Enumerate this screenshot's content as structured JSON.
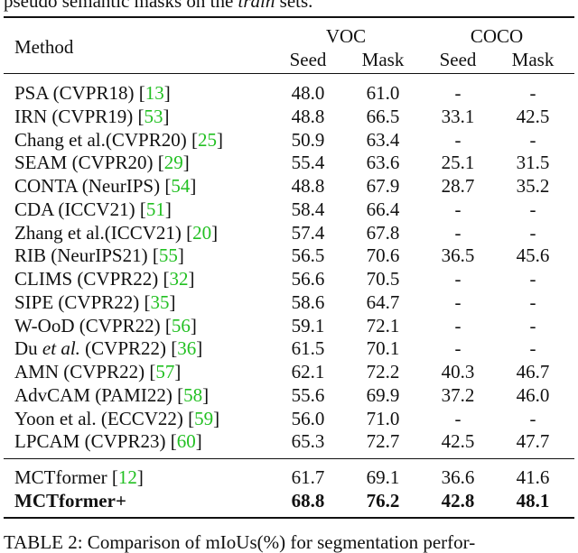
{
  "top_text": [
    "pseudo semantic masks on the ",
    "train",
    " sets."
  ],
  "table": {
    "header": {
      "method": "Method",
      "groups": [
        "VOC",
        "COCO"
      ],
      "columns": [
        "Seed",
        "Mask",
        "Seed",
        "Mask"
      ]
    },
    "rows": [
      {
        "method": "PSA (CVPR18)",
        "cite": "[13]",
        "values": [
          "48.0",
          "61.0",
          "-",
          "-"
        ]
      },
      {
        "method": "IRN (CVPR19)",
        "cite": "[53]",
        "values": [
          "48.8",
          "66.5",
          "33.1",
          "42.5"
        ]
      },
      {
        "method": "Chang et al.(CVPR20)",
        "cite": "[25]",
        "values": [
          "50.9",
          "63.4",
          "-",
          "-"
        ]
      },
      {
        "method": "SEAM (CVPR20)",
        "cite": "[29]",
        "values": [
          "55.4",
          "63.6",
          "25.1",
          "31.5"
        ]
      },
      {
        "method": "CONTA (NeurIPS)",
        "cite": "[54]",
        "values": [
          "48.8",
          "67.9",
          "28.7",
          "35.2"
        ]
      },
      {
        "method": "CDA (ICCV21)",
        "cite": "[51]",
        "values": [
          "58.4",
          "66.4",
          "-",
          "-"
        ]
      },
      {
        "method": "Zhang et al.(ICCV21)",
        "cite": "[20]",
        "values": [
          "57.4",
          "67.8",
          "-",
          "-"
        ]
      },
      {
        "method": "RIB (NeurIPS21)",
        "cite": "[55]",
        "values": [
          "56.5",
          "70.6",
          "36.5",
          "45.6"
        ]
      },
      {
        "method": "CLIMS (CVPR22)",
        "cite": "[32]",
        "values": [
          "56.6",
          "70.5",
          "-",
          "-"
        ]
      },
      {
        "method": "SIPE (CVPR22)",
        "cite": "[35]",
        "values": [
          "58.6",
          "64.7",
          "-",
          "-"
        ]
      },
      {
        "method": "W-OoD (CVPR22)",
        "cite": "[56]",
        "values": [
          "59.1",
          "72.1",
          "-",
          "-"
        ]
      },
      {
        "method": [
          "Du ",
          "et al.",
          " (CVPR22)"
        ],
        "cite": "[36]",
        "values": [
          "61.5",
          "70.1",
          "-",
          "-"
        ]
      },
      {
        "method": "AMN (CVPR22)",
        "cite": "[57]",
        "values": [
          "62.1",
          "72.2",
          "40.3",
          "46.7"
        ]
      },
      {
        "method": "AdvCAM (PAMI22)",
        "cite": "[58]",
        "values": [
          "55.6",
          "69.9",
          "37.2",
          "46.0"
        ]
      },
      {
        "method": "Yoon et al. (ECCV22)",
        "cite": "[59]",
        "values": [
          "56.0",
          "71.0",
          "-",
          "-"
        ]
      },
      {
        "method": "LPCAM (CVPR23)",
        "cite": "[60]",
        "values": [
          "65.3",
          "72.7",
          "42.5",
          "47.7"
        ]
      }
    ],
    "ours": [
      {
        "method": "MCTformer",
        "cite": "[12]",
        "values": [
          "61.7",
          "69.1",
          "36.6",
          "41.6"
        ]
      },
      {
        "method": "MCTformer+",
        "values": [
          "68.8",
          "76.2",
          "42.8",
          "48.1"
        ],
        "bold": true
      }
    ]
  },
  "caption": "TABLE 2: Comparison of mIoUs(%) for segmentation perfor-"
}
